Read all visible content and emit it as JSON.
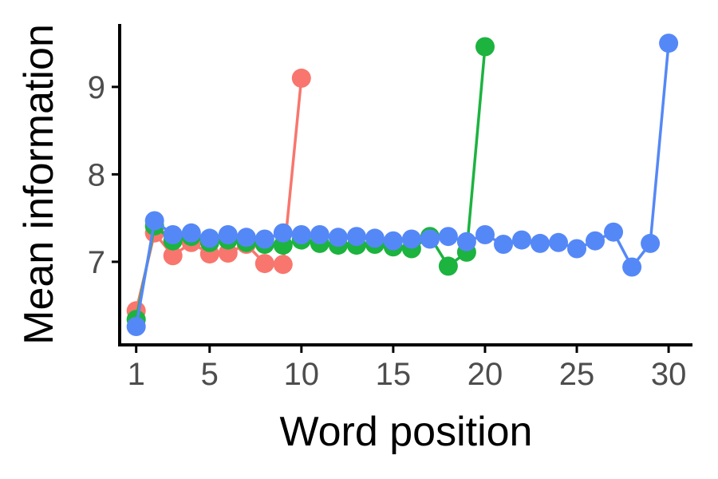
{
  "chart_data": {
    "type": "line",
    "title": "",
    "xlabel": "Word position",
    "ylabel": "Mean information",
    "xlim": [
      0.1,
      31.3
    ],
    "ylim": [
      6.05,
      9.72
    ],
    "xticks": [
      1,
      5,
      10,
      15,
      20,
      25,
      30
    ],
    "yticks": [
      7,
      8,
      9
    ],
    "grid": false,
    "legend": "none",
    "series": [
      {
        "color": "#F8766D",
        "x": [
          1,
          2,
          3,
          4,
          5,
          6,
          7,
          8,
          9,
          10
        ],
        "y": [
          6.44,
          7.33,
          7.07,
          7.22,
          7.09,
          7.1,
          7.2,
          6.98,
          6.97,
          9.1
        ]
      },
      {
        "color": "#1CB33F",
        "x": [
          1,
          2,
          3,
          4,
          5,
          6,
          7,
          8,
          9,
          10,
          11,
          12,
          13,
          14,
          15,
          16,
          17,
          18,
          19,
          20
        ],
        "y": [
          6.34,
          7.41,
          7.24,
          7.29,
          7.22,
          7.25,
          7.22,
          7.2,
          7.19,
          7.25,
          7.21,
          7.19,
          7.19,
          7.2,
          7.17,
          7.15,
          7.29,
          6.95,
          7.11,
          9.46
        ]
      },
      {
        "color": "#5588F7",
        "x": [
          1,
          2,
          3,
          4,
          5,
          6,
          7,
          8,
          9,
          10,
          11,
          12,
          13,
          14,
          15,
          16,
          17,
          18,
          19,
          20,
          21,
          22,
          23,
          24,
          25,
          26,
          27,
          28,
          29,
          30
        ],
        "y": [
          6.26,
          7.47,
          7.31,
          7.33,
          7.27,
          7.31,
          7.28,
          7.26,
          7.33,
          7.31,
          7.31,
          7.28,
          7.29,
          7.27,
          7.24,
          7.26,
          7.26,
          7.29,
          7.23,
          7.31,
          7.2,
          7.25,
          7.21,
          7.22,
          7.15,
          7.24,
          7.34,
          6.94,
          7.21,
          9.5
        ]
      }
    ]
  }
}
